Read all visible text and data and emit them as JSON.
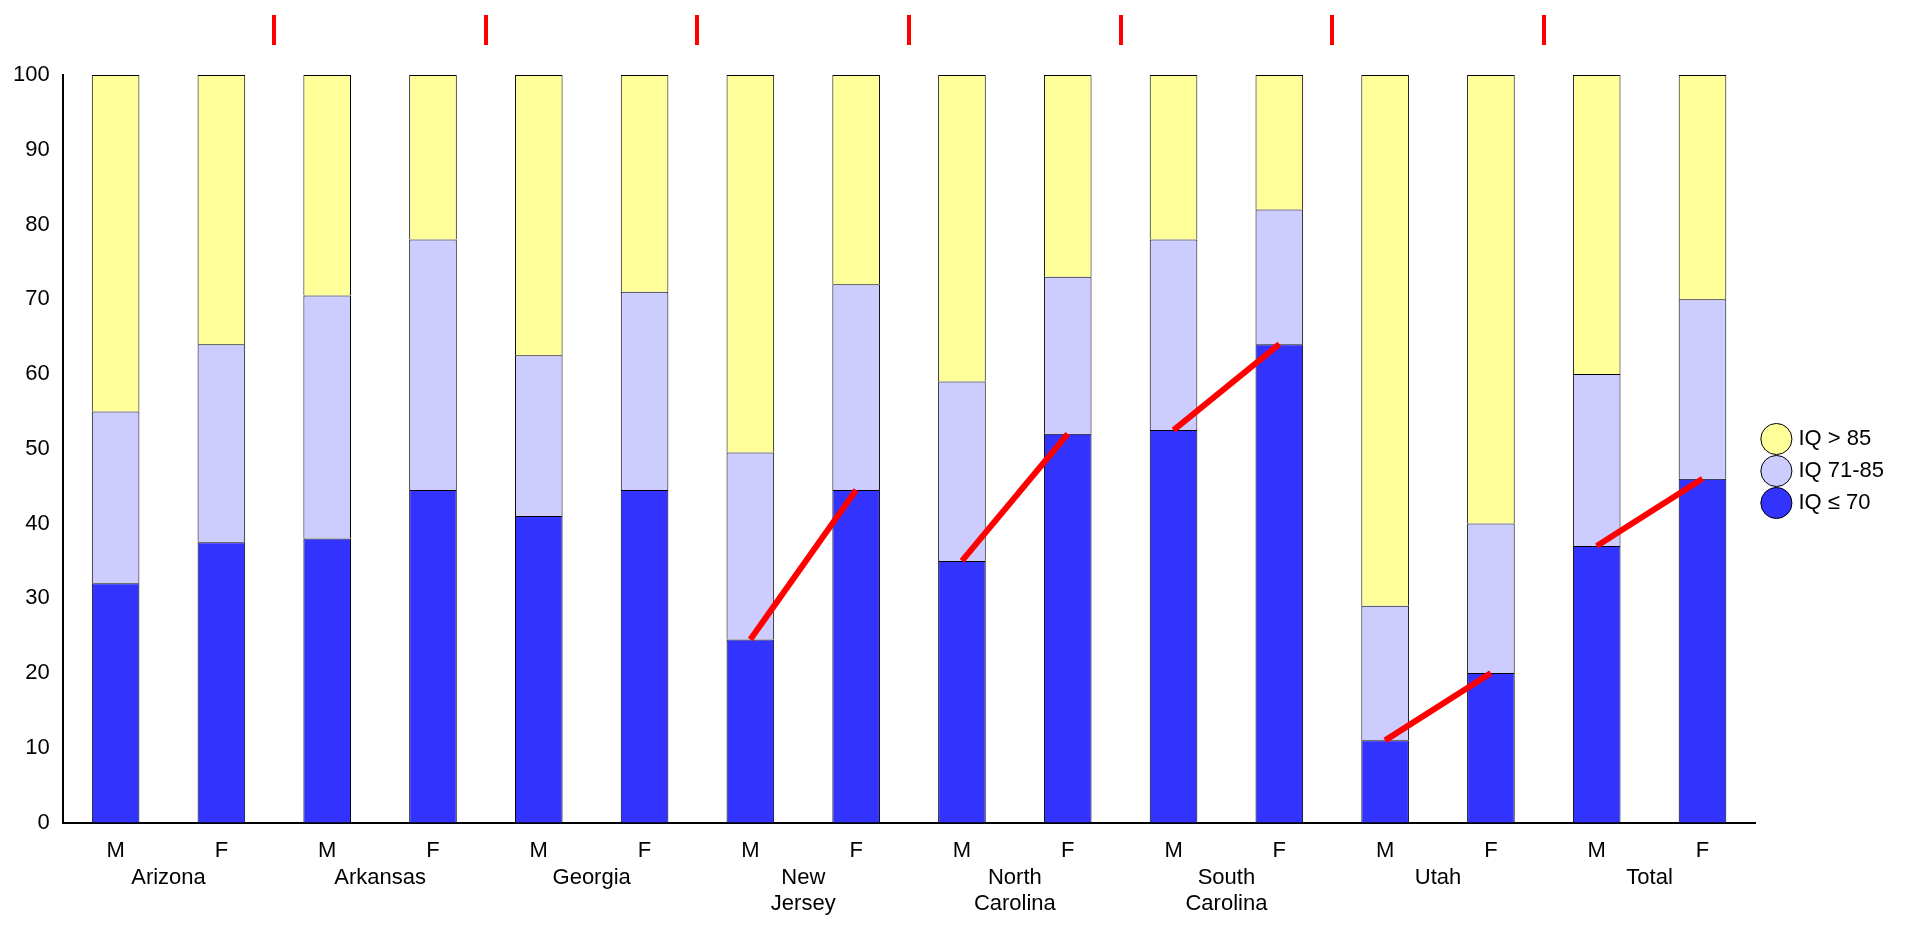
{
  "chart_data": {
    "type": "bar",
    "stacked": true,
    "categories": [
      "M",
      "F",
      "M",
      "F",
      "M",
      "F",
      "M",
      "F",
      "M",
      "F",
      "M",
      "F",
      "M",
      "F",
      "M",
      "F"
    ],
    "annotations": [
      "Arizona",
      "Arkansas",
      "Georgia",
      "New Jersey",
      "North Carolina",
      "South Carolina",
      "Utah",
      "Total"
    ],
    "series": [
      {
        "name": "IQ ≤ 70",
        "color": "#3333ff",
        "values": [
          32,
          37.5,
          38,
          44.5,
          41,
          44.5,
          24.5,
          44.5,
          35,
          52,
          52.5,
          64,
          11,
          20,
          37,
          46
        ]
      },
      {
        "name": "IQ 71-85",
        "color": "#ccccff",
        "values": [
          23,
          26.5,
          32.5,
          33.5,
          21.5,
          26.5,
          25,
          27.5,
          24,
          21,
          25.5,
          18,
          18,
          20,
          23,
          24
        ]
      },
      {
        "name": "IQ > 85",
        "color": "#ffff99",
        "values": [
          45,
          36,
          29.5,
          22,
          37.5,
          29,
          50.5,
          28,
          41,
          27,
          22,
          18,
          71,
          60,
          40,
          30
        ]
      },
      {
        "type": "line",
        "color": "#ff0000",
        "values": [
          null,
          null,
          null,
          null,
          null,
          null,
          24.5,
          44.5,
          null,
          null,
          null,
          null,
          null,
          null,
          null,
          null
        ]
      },
      {
        "type": "line",
        "color": "#ff0000",
        "values": [
          null,
          null,
          null,
          null,
          null,
          null,
          null,
          null,
          35,
          52,
          null,
          null,
          null,
          null,
          null,
          null
        ]
      },
      {
        "type": "line",
        "color": "#ff0000",
        "values": [
          null,
          null,
          null,
          null,
          null,
          null,
          null,
          null,
          null,
          null,
          52.5,
          64,
          null,
          null,
          null,
          null
        ]
      },
      {
        "type": "line",
        "color": "#ff0000",
        "values": [
          null,
          null,
          null,
          null,
          null,
          null,
          null,
          null,
          null,
          null,
          null,
          null,
          11,
          20,
          null,
          null
        ]
      },
      {
        "type": "line",
        "color": "#ff0000",
        "values": [
          null,
          null,
          null,
          null,
          null,
          null,
          null,
          null,
          null,
          null,
          null,
          null,
          null,
          null,
          37,
          46
        ]
      }
    ],
    "ylim": [
      0,
      100
    ],
    "yticks": [
      0,
      10,
      20,
      30,
      40,
      50,
      60,
      70,
      80,
      90,
      100
    ],
    "grid": false,
    "legend": "right",
    "marker": "none"
  }
}
